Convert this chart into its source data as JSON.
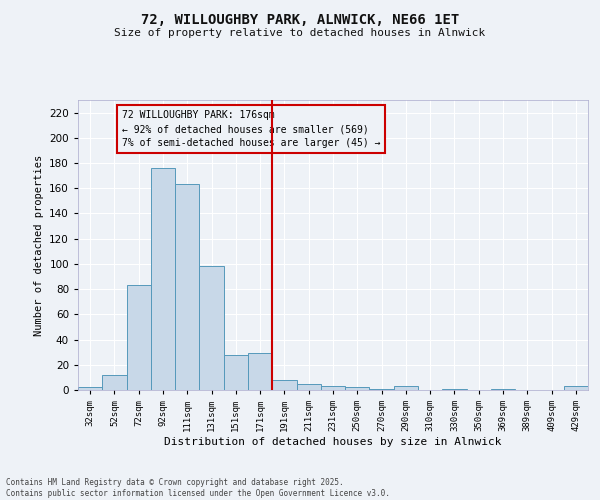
{
  "title_line1": "72, WILLOUGHBY PARK, ALNWICK, NE66 1ET",
  "title_line2": "Size of property relative to detached houses in Alnwick",
  "xlabel": "Distribution of detached houses by size in Alnwick",
  "ylabel": "Number of detached properties",
  "categories": [
    "32sqm",
    "52sqm",
    "72sqm",
    "92sqm",
    "111sqm",
    "131sqm",
    "151sqm",
    "171sqm",
    "191sqm",
    "211sqm",
    "231sqm",
    "250sqm",
    "270sqm",
    "290sqm",
    "310sqm",
    "330sqm",
    "350sqm",
    "369sqm",
    "389sqm",
    "409sqm",
    "429sqm"
  ],
  "values": [
    2,
    12,
    83,
    176,
    163,
    98,
    28,
    29,
    8,
    5,
    3,
    2,
    1,
    3,
    0,
    1,
    0,
    1,
    0,
    0,
    3
  ],
  "bar_color": "#c8d8e8",
  "bar_edge_color": "#5599bb",
  "vline_x": 7.5,
  "vline_color": "#cc0000",
  "annotation_title": "72 WILLOUGHBY PARK: 176sqm",
  "annotation_line1": "← 92% of detached houses are smaller (569)",
  "annotation_line2": "7% of semi-detached houses are larger (45) →",
  "annotation_box_color": "#cc0000",
  "ylim": [
    0,
    230
  ],
  "yticks": [
    0,
    20,
    40,
    60,
    80,
    100,
    120,
    140,
    160,
    180,
    200,
    220
  ],
  "background_color": "#eef2f7",
  "grid_color": "#ffffff",
  "footer_line1": "Contains HM Land Registry data © Crown copyright and database right 2025.",
  "footer_line2": "Contains public sector information licensed under the Open Government Licence v3.0."
}
